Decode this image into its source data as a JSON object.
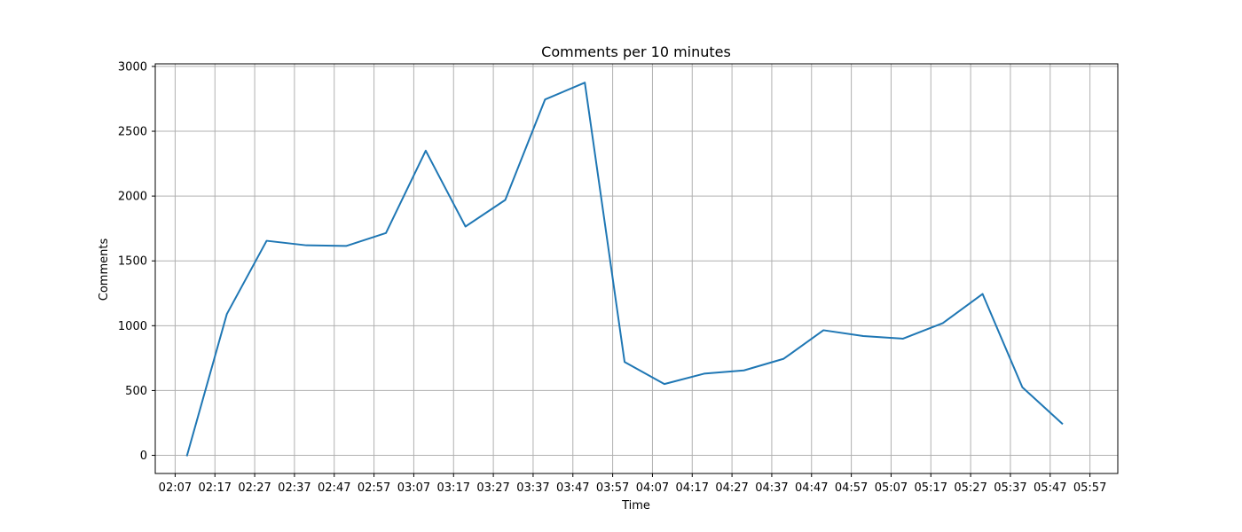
{
  "chart_data": {
    "type": "line",
    "title": "Comments per 10 minutes",
    "xlabel": "Time",
    "ylabel": "Comments",
    "grid": true,
    "x_tick_labels": [
      "02:07",
      "02:17",
      "02:27",
      "02:37",
      "02:47",
      "02:57",
      "03:07",
      "03:17",
      "03:27",
      "03:37",
      "03:47",
      "03:57",
      "04:07",
      "04:17",
      "04:27",
      "04:37",
      "04:47",
      "04:57",
      "05:07",
      "05:17",
      "05:27",
      "05:37",
      "05:47",
      "05:57"
    ],
    "y_ticks": [
      0,
      500,
      1000,
      1500,
      2000,
      2500,
      3000
    ],
    "ylim": [
      -140,
      3020
    ],
    "xlim": [
      "02:02",
      "06:04"
    ],
    "series": [
      {
        "color": "#1f77b4",
        "points": [
          {
            "x": "02:10",
            "y": 0
          },
          {
            "x": "02:20",
            "y": 1090
          },
          {
            "x": "02:30",
            "y": 1655
          },
          {
            "x": "02:40",
            "y": 1620
          },
          {
            "x": "02:50",
            "y": 1615
          },
          {
            "x": "03:00",
            "y": 1715
          },
          {
            "x": "03:10",
            "y": 2350
          },
          {
            "x": "03:20",
            "y": 1765
          },
          {
            "x": "03:30",
            "y": 1970
          },
          {
            "x": "03:40",
            "y": 2745
          },
          {
            "x": "03:50",
            "y": 2875
          },
          {
            "x": "04:00",
            "y": 720
          },
          {
            "x": "04:10",
            "y": 550
          },
          {
            "x": "04:20",
            "y": 630
          },
          {
            "x": "04:30",
            "y": 655
          },
          {
            "x": "04:40",
            "y": 745
          },
          {
            "x": "04:50",
            "y": 965
          },
          {
            "x": "05:00",
            "y": 920
          },
          {
            "x": "05:10",
            "y": 900
          },
          {
            "x": "05:20",
            "y": 1020
          },
          {
            "x": "05:30",
            "y": 1245
          },
          {
            "x": "05:40",
            "y": 525
          },
          {
            "x": "05:50",
            "y": 245
          }
        ]
      }
    ]
  }
}
